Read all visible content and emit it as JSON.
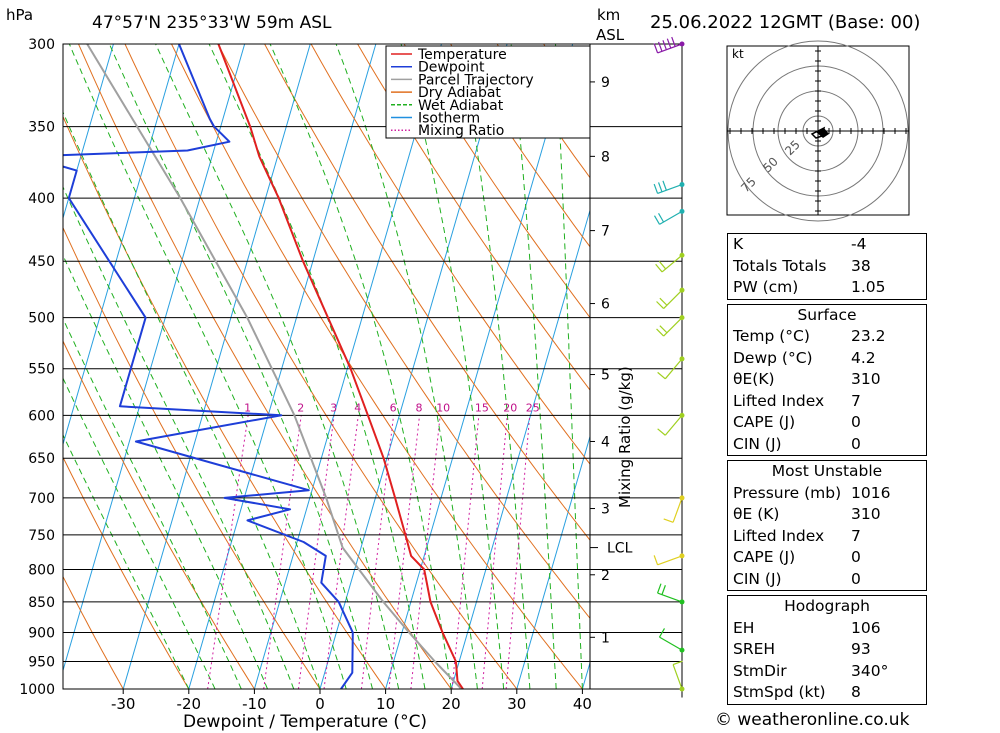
{
  "header": {
    "pressure_unit": "hPa",
    "location": "47°57'N  235°33'W  59m  ASL",
    "height_unit_1": "km",
    "height_unit_2": "ASL",
    "datetime": "25.06.2022  12GMT  (Base: 00)"
  },
  "credit": "© weatheronline.co.uk",
  "chart_data": {
    "type": "skew-t",
    "xlabel": "Dewpoint / Temperature (°C)",
    "ylabel_right": "Mixing Ratio (g/kg)",
    "ylabel_left": "hPa",
    "pressure_levels": [
      300,
      350,
      400,
      450,
      500,
      550,
      600,
      650,
      700,
      750,
      800,
      850,
      900,
      950,
      1000
    ],
    "temperature_ticks": [
      -30,
      -20,
      -10,
      0,
      10,
      20,
      30,
      40
    ],
    "height_ticks_km": [
      {
        "label": "1",
        "p": 908
      },
      {
        "label": "2",
        "p": 808
      },
      {
        "label": "3",
        "p": 714
      },
      {
        "label": "4",
        "p": 630
      },
      {
        "label": "5",
        "p": 556
      },
      {
        "label": "6",
        "p": 487
      },
      {
        "label": "7",
        "p": 425
      },
      {
        "label": "8",
        "p": 370
      },
      {
        "label": "9",
        "p": 322
      }
    ],
    "lcl": {
      "label": "LCL",
      "p": 768
    },
    "mixing_ratio_labels": [
      "1",
      "2",
      "3",
      "4",
      "6",
      "8",
      "10",
      "15",
      "20",
      "25"
    ],
    "mixing_ratio_label_pressure": 600,
    "legend": [
      {
        "name": "Temperature",
        "color": "#e02020",
        "style": "solid"
      },
      {
        "name": "Dewpoint",
        "color": "#1e3ed8",
        "style": "solid"
      },
      {
        "name": "Parcel Trajectory",
        "color": "#a0a0a0",
        "style": "solid"
      },
      {
        "name": "Dry Adiabat",
        "color": "#e07020",
        "style": "solid"
      },
      {
        "name": "Wet Adiabat",
        "color": "#20b020",
        "style": "dashed"
      },
      {
        "name": "Isotherm",
        "color": "#2090e0",
        "style": "solid"
      },
      {
        "name": "Mixing Ratio",
        "color": "#d020a0",
        "style": "dotted"
      }
    ],
    "temperature": [
      {
        "p": 1016,
        "t": 23.2
      },
      {
        "p": 1000,
        "t": 21.8
      },
      {
        "p": 985,
        "t": 20.6
      },
      {
        "p": 950,
        "t": 19.5
      },
      {
        "p": 900,
        "t": 16.2
      },
      {
        "p": 850,
        "t": 13.0
      },
      {
        "p": 800,
        "t": 10.6
      },
      {
        "p": 780,
        "t": 8.0
      },
      {
        "p": 750,
        "t": 6.2
      },
      {
        "p": 700,
        "t": 3.0
      },
      {
        "p": 650,
        "t": -0.5
      },
      {
        "p": 600,
        "t": -4.8
      },
      {
        "p": 550,
        "t": -9.5
      },
      {
        "p": 500,
        "t": -15.2
      },
      {
        "p": 450,
        "t": -21.5
      },
      {
        "p": 400,
        "t": -28.0
      },
      {
        "p": 370,
        "t": -32.8
      },
      {
        "p": 350,
        "t": -35.5
      },
      {
        "p": 300,
        "t": -44.0
      }
    ],
    "dewpoint": [
      {
        "p": 1016,
        "t": 4.2
      },
      {
        "p": 1000,
        "t": 3.2
      },
      {
        "p": 970,
        "t": 4.2
      },
      {
        "p": 900,
        "t": 2.5
      },
      {
        "p": 850,
        "t": -1.0
      },
      {
        "p": 820,
        "t": -4.5
      },
      {
        "p": 780,
        "t": -5.0
      },
      {
        "p": 760,
        "t": -9.0
      },
      {
        "p": 730,
        "t": -18.5
      },
      {
        "p": 715,
        "t": -12.5
      },
      {
        "p": 700,
        "t": -23.0
      },
      {
        "p": 690,
        "t": -10.5
      },
      {
        "p": 630,
        "t": -39.0
      },
      {
        "p": 600,
        "t": -18.0
      },
      {
        "p": 590,
        "t": -43.0
      },
      {
        "p": 500,
        "t": -43.0
      },
      {
        "p": 400,
        "t": -60.0
      },
      {
        "p": 380,
        "t": -60.0
      },
      {
        "p": 370,
        "t": -68.0
      },
      {
        "p": 366,
        "t": -44.0
      },
      {
        "p": 360,
        "t": -38.0
      },
      {
        "p": 350,
        "t": -41.0
      },
      {
        "p": 345,
        "t": -42.0
      },
      {
        "p": 300,
        "t": -50.0
      }
    ],
    "parcel": [
      {
        "p": 1016,
        "t": 23.2
      },
      {
        "p": 950,
        "t": 16.3
      },
      {
        "p": 900,
        "t": 11.1
      },
      {
        "p": 850,
        "t": 5.8
      },
      {
        "p": 768,
        "t": -2.8
      },
      {
        "p": 700,
        "t": -7.5
      },
      {
        "p": 600,
        "t": -16.0
      },
      {
        "p": 500,
        "t": -27.5
      },
      {
        "p": 400,
        "t": -43.0
      },
      {
        "p": 300,
        "t": -64.0
      }
    ],
    "wind_profile": [
      {
        "p": 300,
        "dir": 250,
        "spd": 55,
        "color": "#8a1aa8"
      },
      {
        "p": 390,
        "dir": 250,
        "spd": 25,
        "color": "#20b0b0"
      },
      {
        "p": 410,
        "dir": 240,
        "spd": 20,
        "color": "#20b0b0"
      },
      {
        "p": 445,
        "dir": 230,
        "spd": 15,
        "color": "#a0d020"
      },
      {
        "p": 475,
        "dir": 225,
        "spd": 15,
        "color": "#a0d020"
      },
      {
        "p": 500,
        "dir": 225,
        "spd": 15,
        "color": "#a0d020"
      },
      {
        "p": 540,
        "dir": 220,
        "spd": 10,
        "color": "#a0d020"
      },
      {
        "p": 600,
        "dir": 220,
        "spd": 10,
        "color": "#a0d020"
      },
      {
        "p": 700,
        "dir": 200,
        "spd": 5,
        "color": "#e0d020"
      },
      {
        "p": 780,
        "dir": 250,
        "spd": 10,
        "color": "#e0d020"
      },
      {
        "p": 850,
        "dir": 290,
        "spd": 15,
        "color": "#20c020"
      },
      {
        "p": 930,
        "dir": 300,
        "spd": 10,
        "color": "#20c020"
      },
      {
        "p": 1000,
        "dir": 340,
        "spd": 8,
        "color": "#a0d020"
      }
    ],
    "hodograph": {
      "unit": "kt",
      "ring_labels": [
        "25",
        "50",
        "75"
      ]
    }
  },
  "indices": {
    "k_label": "K",
    "k": "-4",
    "tt_label": "Totals Totals",
    "tt": "38",
    "pw_label": "PW (cm)",
    "pw": "1.05"
  },
  "surface": {
    "title": "Surface",
    "temp_label": "Temp (°C)",
    "temp": "23.2",
    "dewp_label": "Dewp (°C)",
    "dewp": "4.2",
    "theta_label": "θE(K)",
    "theta": "310",
    "li_label": "Lifted Index",
    "li": "7",
    "cape_label": "CAPE (J)",
    "cape": "0",
    "cin_label": "CIN (J)",
    "cin": "0"
  },
  "most_unstable": {
    "title": "Most Unstable",
    "pressure_label": "Pressure (mb)",
    "pressure": "1016",
    "theta_label": "θE (K)",
    "theta": "310",
    "li_label": "Lifted Index",
    "li": "7",
    "cape_label": "CAPE (J)",
    "cape": "0",
    "cin_label": "CIN (J)",
    "cin": "0"
  },
  "hodograph_stats": {
    "title": "Hodograph",
    "eh_label": "EH",
    "eh": "106",
    "sreh_label": "SREH",
    "sreh": "93",
    "stmdir_label": "StmDir",
    "stmdir": "340°",
    "stmspd_label": "StmSpd (kt)",
    "stmspd": "8"
  }
}
